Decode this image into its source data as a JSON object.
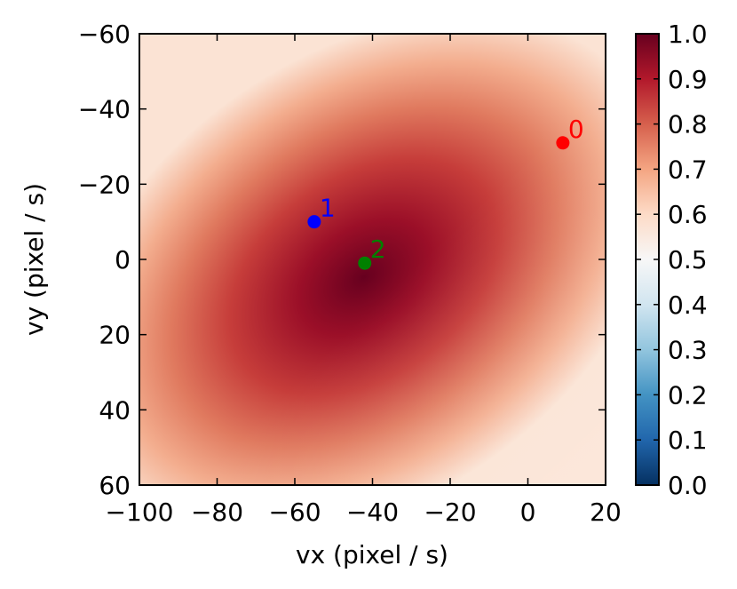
{
  "chart_data": {
    "type": "heatmap",
    "xlabel": "vx (pixel / s)",
    "ylabel": "vy (pixel / s)",
    "xlim": [
      -100,
      20
    ],
    "ylim": [
      60,
      -60
    ],
    "y_axis_inverted": true,
    "x_ticks": [
      -100,
      -80,
      -60,
      -40,
      -20,
      0,
      20
    ],
    "x_tick_labels": [
      "−100",
      "−80",
      "−60",
      "−40",
      "−20",
      "0",
      "20"
    ],
    "y_ticks": [
      -60,
      -40,
      -20,
      0,
      20,
      40,
      60
    ],
    "y_tick_labels": [
      "−60",
      "−40",
      "−20",
      "0",
      "20",
      "40",
      "60"
    ],
    "heatmap_description": {
      "peak": {
        "vx": -40,
        "vy": 5,
        "value": 0.97
      },
      "colormap": "RdBu_r"
    },
    "colorbar": {
      "range": [
        0.0,
        1.0
      ],
      "ticks": [
        0.0,
        0.1,
        0.2,
        0.3,
        0.4,
        0.5,
        0.6,
        0.7,
        0.8,
        0.9,
        1.0
      ],
      "tick_labels": [
        "0.0",
        "0.1",
        "0.2",
        "0.3",
        "0.4",
        "0.5",
        "0.6",
        "0.7",
        "0.8",
        "0.9",
        "1.0"
      ]
    },
    "points": [
      {
        "label": "0",
        "vx": 9,
        "vy": -31,
        "color": "#ff0000"
      },
      {
        "label": "1",
        "vx": -55,
        "vy": -10,
        "color": "#0000ff"
      },
      {
        "label": "2",
        "vx": -42,
        "vy": 1,
        "color": "#008000"
      }
    ],
    "grid": false,
    "legend": "none"
  }
}
